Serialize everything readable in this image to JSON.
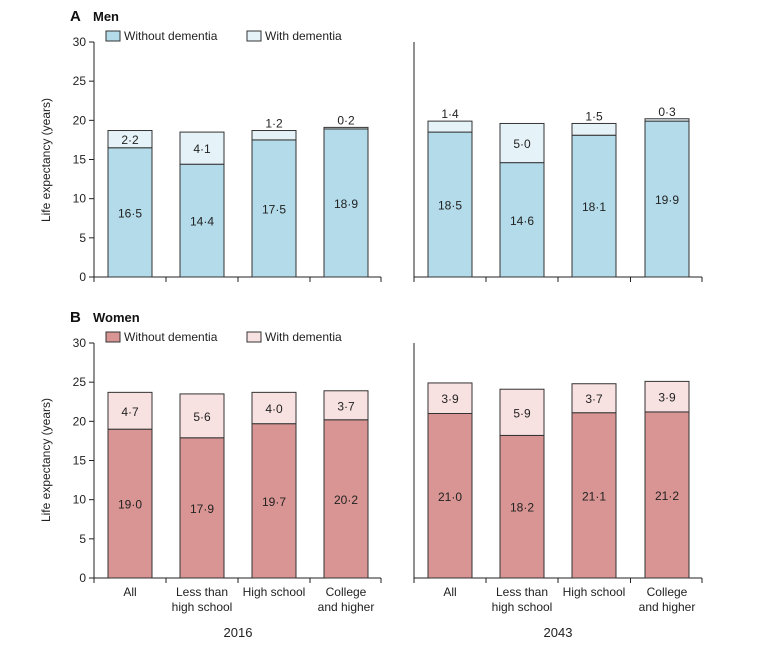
{
  "panels": [
    {
      "letter": "A",
      "title": "Men"
    },
    {
      "letter": "B",
      "title": "Women"
    }
  ],
  "ylabel": "Life expectancy (years)",
  "yticks": [
    "0",
    "5",
    "10",
    "15",
    "20",
    "25",
    "30"
  ],
  "years": [
    "2016",
    "2043"
  ],
  "categories": [
    [
      "All"
    ],
    [
      "Less than",
      "high school"
    ],
    [
      "High school"
    ],
    [
      "College",
      "and higher"
    ]
  ],
  "colors": {
    "men_without": "#b3dbea",
    "men_with": "#e5f3f8",
    "women_without": "#d99593",
    "women_with": "#f8e1e1",
    "bar_stroke": "#333333"
  },
  "chart_data": [
    {
      "type": "bar",
      "stacked": true,
      "title": "Men",
      "ylabel": "Life expectancy (years)",
      "ylim": [
        0,
        30
      ],
      "categories": [
        "All",
        "Less than high school",
        "High school",
        "College and higher"
      ],
      "groups": [
        "2016",
        "2043"
      ],
      "legend": [
        "Without dementia",
        "With dementia"
      ],
      "series": [
        {
          "name": "Without dementia",
          "values_2016": [
            16.5,
            14.4,
            17.5,
            18.9
          ],
          "values_2043": [
            18.5,
            14.6,
            18.1,
            19.9
          ],
          "labels_2016": [
            "16·5",
            "14·4",
            "17·5",
            "18·9"
          ],
          "labels_2043": [
            "18·5",
            "14·6",
            "18·1",
            "19·9"
          ]
        },
        {
          "name": "With dementia",
          "values_2016": [
            2.2,
            4.1,
            1.2,
            0.2
          ],
          "values_2043": [
            1.4,
            5.0,
            1.5,
            0.3
          ],
          "labels_2016": [
            "2·2",
            "4·1",
            "1·2",
            "0·2"
          ],
          "labels_2043": [
            "1·4",
            "5·0",
            "1·5",
            "0·3"
          ]
        }
      ]
    },
    {
      "type": "bar",
      "stacked": true,
      "title": "Women",
      "ylabel": "Life expectancy (years)",
      "ylim": [
        0,
        30
      ],
      "categories": [
        "All",
        "Less than high school",
        "High school",
        "College and higher"
      ],
      "groups": [
        "2016",
        "2043"
      ],
      "legend": [
        "Without dementia",
        "With dementia"
      ],
      "series": [
        {
          "name": "Without dementia",
          "values_2016": [
            19.0,
            17.9,
            19.7,
            20.2
          ],
          "values_2043": [
            21.0,
            18.2,
            21.1,
            21.2
          ],
          "labels_2016": [
            "19·0",
            "17·9",
            "19·7",
            "20·2"
          ],
          "labels_2043": [
            "21·0",
            "18·2",
            "21·1",
            "21·2"
          ]
        },
        {
          "name": "With dementia",
          "values_2016": [
            4.7,
            5.6,
            4.0,
            3.7
          ],
          "values_2043": [
            3.9,
            5.9,
            3.7,
            3.9
          ],
          "labels_2016": [
            "4·7",
            "5·6",
            "4·0",
            "3·7"
          ],
          "labels_2043": [
            "3·9",
            "5·9",
            "3·7",
            "3·9"
          ]
        }
      ]
    }
  ]
}
